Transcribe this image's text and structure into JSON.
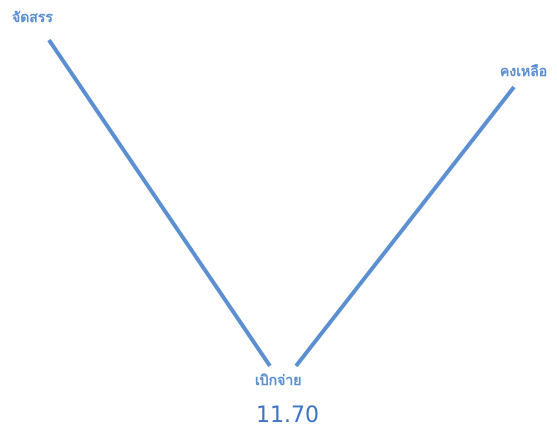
{
  "diagram": {
    "labels": {
      "allocated": "จัดสรร",
      "remaining": "คงเหลือ",
      "disbursed": "เบิกจ่าย"
    },
    "disbursed_value": "11.70",
    "colors": {
      "line": "#5b8fd1",
      "label": "#5b8fd1",
      "value": "#3f73c4"
    }
  }
}
